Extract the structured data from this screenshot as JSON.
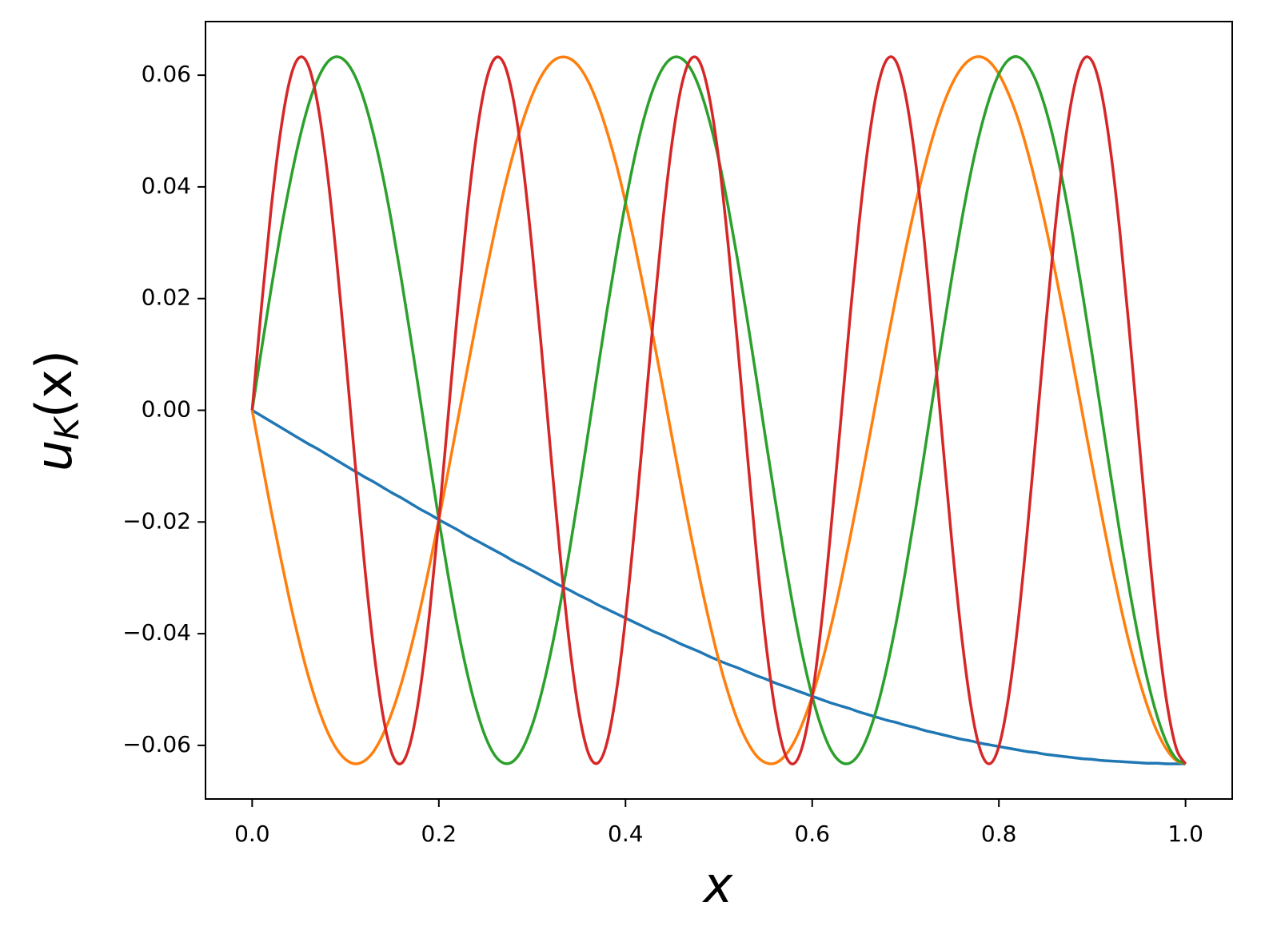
{
  "chart_data": {
    "type": "line",
    "xlabel": "x",
    "ylabel": [
      "u",
      "K",
      "(x)"
    ],
    "x": [
      0,
      0.01,
      0.02,
      0.03,
      0.04,
      0.05,
      0.06,
      0.07,
      0.08,
      0.09,
      0.1,
      0.11,
      0.12,
      0.13,
      0.14,
      0.15,
      0.16,
      0.17,
      0.18,
      0.19,
      0.2,
      0.21,
      0.22,
      0.23,
      0.24,
      0.25,
      0.26,
      0.27,
      0.28,
      0.29,
      0.3,
      0.31,
      0.32,
      0.33,
      0.34,
      0.35,
      0.36,
      0.37,
      0.38,
      0.39,
      0.4,
      0.41,
      0.42,
      0.43,
      0.44,
      0.45,
      0.46,
      0.47,
      0.48,
      0.49,
      0.5,
      0.51,
      0.52,
      0.53,
      0.54,
      0.55,
      0.56,
      0.57,
      0.58,
      0.59,
      0.6,
      0.61,
      0.62,
      0.63,
      0.64,
      0.65,
      0.66,
      0.67,
      0.68,
      0.69,
      0.7,
      0.71,
      0.72,
      0.73,
      0.74,
      0.75,
      0.76,
      0.77,
      0.78,
      0.79,
      0.8,
      0.81,
      0.82,
      0.83,
      0.84,
      0.85,
      0.86,
      0.87,
      0.88,
      0.89,
      0.9,
      0.91,
      0.92,
      0.93,
      0.94,
      0.95,
      0.96,
      0.97,
      0.98,
      0.99,
      1
    ],
    "series": [
      {
        "color": "#1f77b4",
        "values": [
          0,
          -0.001,
          -0.002,
          -0.003,
          -0.004,
          -0.005,
          -0.006,
          -0.0069,
          -0.0079,
          -0.0089,
          -0.0099,
          -0.0109,
          -0.0119,
          -0.0128,
          -0.0138,
          -0.0148,
          -0.0157,
          -0.0167,
          -0.0177,
          -0.0186,
          -0.0196,
          -0.0205,
          -0.0214,
          -0.0224,
          -0.0233,
          -0.0242,
          -0.0251,
          -0.026,
          -0.027,
          -0.0278,
          -0.0287,
          -0.0296,
          -0.0305,
          -0.0314,
          -0.0322,
          -0.0331,
          -0.0339,
          -0.0348,
          -0.0356,
          -0.0364,
          -0.0372,
          -0.038,
          -0.0388,
          -0.0396,
          -0.0403,
          -0.0411,
          -0.0419,
          -0.0426,
          -0.0433,
          -0.0441,
          -0.0448,
          -0.0455,
          -0.0461,
          -0.0468,
          -0.0475,
          -0.0481,
          -0.0488,
          -0.0494,
          -0.05,
          -0.0506,
          -0.0512,
          -0.0518,
          -0.0524,
          -0.0529,
          -0.0534,
          -0.054,
          -0.0545,
          -0.055,
          -0.0555,
          -0.0559,
          -0.0564,
          -0.0568,
          -0.0573,
          -0.0577,
          -0.0581,
          -0.0585,
          -0.0589,
          -0.0592,
          -0.0596,
          -0.0599,
          -0.0602,
          -0.0605,
          -0.0608,
          -0.0611,
          -0.0613,
          -0.0616,
          -0.0618,
          -0.062,
          -0.0622,
          -0.0624,
          -0.0625,
          -0.0627,
          -0.0628,
          -0.0629,
          -0.063,
          -0.0631,
          -0.0632,
          -0.0632,
          -0.0633,
          -0.0633,
          -0.0633
        ]
      },
      {
        "color": "#ff7f0e",
        "values": [
          0,
          -0.0089,
          -0.0177,
          -0.026,
          -0.0339,
          -0.0411,
          -0.0475,
          -0.0529,
          -0.0573,
          -0.0605,
          -0.0625,
          -0.0633,
          -0.0628,
          -0.0611,
          -0.0581,
          -0.054,
          -0.0488,
          -0.0426,
          -0.0356,
          -0.0278,
          -0.0196,
          -0.0109,
          -0.002,
          0.0069,
          0.0157,
          0.0242,
          0.0322,
          0.0396,
          0.0461,
          0.0518,
          0.0564,
          0.0599,
          0.0622,
          0.0632,
          0.063,
          0.0616,
          0.0589,
          0.055,
          0.05,
          0.0441,
          0.0372,
          0.0296,
          0.0214,
          0.0128,
          0.004,
          -0.005,
          -0.0138,
          -0.0224,
          -0.0305,
          -0.038,
          -0.0448,
          -0.0506,
          -0.0555,
          -0.0592,
          -0.0618,
          -0.0631,
          -0.0632,
          -0.062,
          -0.0596,
          -0.0559,
          -0.0512,
          -0.0455,
          -0.0388,
          -0.0314,
          -0.0233,
          -0.0148,
          -0.006,
          0.003,
          0.0119,
          0.0205,
          0.0287,
          0.0364,
          0.0433,
          0.0494,
          0.0545,
          0.0585,
          0.0613,
          0.0629,
          0.0633,
          0.0624,
          0.0602,
          0.0568,
          0.0524,
          0.0468,
          0.0403,
          0.0331,
          0.0251,
          0.0167,
          0.0079,
          -0.001,
          -0.0099,
          -0.0186,
          -0.027,
          -0.0348,
          -0.0419,
          -0.0481,
          -0.0534,
          -0.0577,
          -0.0608,
          -0.0627,
          -0.0633
        ]
      },
      {
        "color": "#2ca02c",
        "values": [
          0,
          0.0109,
          0.0214,
          0.0314,
          0.0403,
          0.0481,
          0.0545,
          0.0592,
          0.0622,
          0.0633,
          0.0625,
          0.0599,
          0.0555,
          0.0494,
          0.0419,
          0.0331,
          0.0233,
          0.0128,
          0.002,
          -0.0089,
          -0.0196,
          -0.0296,
          -0.0388,
          -0.0468,
          -0.0534,
          -0.0585,
          -0.0618,
          -0.0632,
          -0.0628,
          -0.0605,
          -0.0564,
          -0.0506,
          -0.0433,
          -0.0348,
          -0.0251,
          -0.0148,
          -0.004,
          0.0069,
          0.0177,
          0.0278,
          0.0372,
          0.0455,
          0.0524,
          0.0577,
          0.0613,
          0.0631,
          0.063,
          0.0611,
          0.0573,
          0.0518,
          0.0448,
          0.0364,
          0.027,
          0.0167,
          0.006,
          -0.005,
          -0.0157,
          -0.026,
          -0.0356,
          -0.0441,
          -0.0512,
          -0.0568,
          -0.0608,
          -0.0629,
          -0.0632,
          -0.0616,
          -0.0581,
          -0.0529,
          -0.0461,
          -0.038,
          -0.0287,
          -0.0186,
          -0.0079,
          0.003,
          0.0138,
          0.0242,
          0.0339,
          0.0426,
          0.05,
          0.0559,
          0.0602,
          0.0627,
          0.0633,
          0.062,
          0.0589,
          0.054,
          0.0475,
          0.0396,
          0.0305,
          0.0205,
          0.0099,
          -0.001,
          -0.0119,
          -0.0224,
          -0.0322,
          -0.0411,
          -0.0488,
          -0.055,
          -0.0596,
          -0.0624,
          -0.0633
        ]
      },
      {
        "color": "#d62728",
        "values": [
          0,
          0.0186,
          0.0356,
          0.0494,
          0.0589,
          0.0631,
          0.0618,
          0.055,
          0.0433,
          0.0278,
          0.0099,
          -0.0089,
          -0.027,
          -0.0426,
          -0.0545,
          -0.0616,
          -0.0632,
          -0.0592,
          -0.05,
          -0.0364,
          -0.0196,
          -0.001,
          0.0177,
          0.0348,
          0.0488,
          0.0585,
          0.063,
          0.062,
          0.0555,
          0.0441,
          0.0287,
          0.0109,
          -0.0079,
          -0.026,
          -0.0419,
          -0.054,
          -0.0613,
          -0.0632,
          -0.0596,
          -0.0506,
          -0.0372,
          -0.0205,
          -0.002,
          0.0167,
          0.0339,
          0.0481,
          0.0581,
          0.0629,
          0.0622,
          0.0559,
          0.0448,
          0.0296,
          0.0119,
          -0.0069,
          -0.0251,
          -0.0411,
          -0.0534,
          -0.0611,
          -0.0633,
          -0.0599,
          -0.0512,
          -0.038,
          -0.0214,
          -0.003,
          0.0157,
          0.0331,
          0.0475,
          0.0577,
          0.0628,
          0.0624,
          0.0564,
          0.0455,
          0.0305,
          0.0128,
          -0.006,
          -0.0242,
          -0.0403,
          -0.0529,
          -0.0608,
          -0.0633,
          -0.0602,
          -0.0518,
          -0.0388,
          -0.0224,
          -0.004,
          0.0148,
          0.0322,
          0.0468,
          0.0573,
          0.0627,
          0.0625,
          0.0568,
          0.0461,
          0.0314,
          0.0138,
          -0.005,
          -0.0233,
          -0.0396,
          -0.0524,
          -0.0605,
          -0.0633
        ]
      }
    ],
    "xlim": [
      -0.05,
      1.05
    ],
    "xticks": [
      {
        "value": 0,
        "label": "0.0"
      },
      0.2,
      0.4,
      0.6,
      0.8,
      {
        "value": 1,
        "label": "1.0"
      }
    ],
    "ylim": [
      -0.0696,
      0.0696
    ],
    "yticks": [
      {
        "value": -0.06,
        "label": "−0.06"
      },
      {
        "value": -0.04,
        "label": "−0.04"
      },
      {
        "value": -0.02,
        "label": "−0.02"
      },
      {
        "value": 0,
        "label": "0.00"
      },
      0.02,
      0.04,
      0.06
    ]
  }
}
